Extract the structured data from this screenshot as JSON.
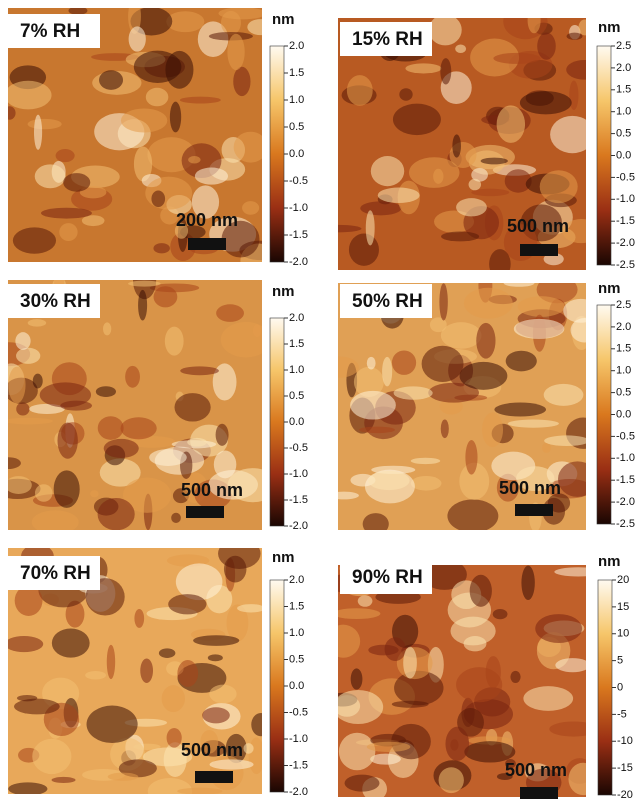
{
  "panels": [
    {
      "label": "7% RH",
      "unit": "nm",
      "scale_bar": "200 nm",
      "ticks": [
        {
          "value": 2,
          "label": "2.0"
        },
        {
          "value": 1.5,
          "label": "1.5"
        },
        {
          "value": 1,
          "label": "1.0"
        },
        {
          "value": 0.5,
          "label": "0.5"
        },
        {
          "value": 0,
          "label": "0.0"
        },
        {
          "value": -0.5,
          "label": "-0.5"
        },
        {
          "value": -1,
          "label": "-1.0"
        },
        {
          "value": -1.5,
          "label": "-1.5"
        },
        {
          "value": -2,
          "label": "-2.0"
        }
      ]
    },
    {
      "label": "15% RH",
      "unit": "nm",
      "scale_bar": "500 nm",
      "ticks": [
        2.5,
        {
          "value": 2,
          "label": "2.0"
        },
        1.5,
        {
          "value": 1,
          "label": "1.0"
        },
        0.5,
        {
          "value": 0,
          "label": "0.0"
        },
        -0.5,
        {
          "value": -1,
          "label": "-1.0"
        },
        -1.5,
        {
          "value": -2,
          "label": "-2.0"
        },
        -2.5
      ]
    },
    {
      "label": "30% RH",
      "unit": "nm",
      "scale_bar": "500 nm",
      "ticks": [
        {
          "value": 2,
          "label": "2.0"
        },
        1.5,
        {
          "value": 1,
          "label": "1.0"
        },
        0.5,
        {
          "value": 0,
          "label": "0.0"
        },
        -0.5,
        {
          "value": -1,
          "label": "-1.0"
        },
        -1.5,
        {
          "value": -2,
          "label": "-2.0"
        }
      ]
    },
    {
      "label": "50% RH",
      "unit": "nm",
      "scale_bar": "500 nm",
      "ticks": [
        2.5,
        {
          "value": 2,
          "label": "2.0"
        },
        1.5,
        {
          "value": 1,
          "label": "1.0"
        },
        0.5,
        {
          "value": 0,
          "label": "0.0"
        },
        -0.5,
        {
          "value": -1,
          "label": "-1.0"
        },
        -1.5,
        {
          "value": -2,
          "label": "-2.0"
        },
        -2.5
      ]
    },
    {
      "label": "70% RH",
      "unit": "nm",
      "scale_bar": "500 nm",
      "ticks": [
        {
          "value": 2,
          "label": "2.0"
        },
        1.5,
        {
          "value": 1,
          "label": "1.0"
        },
        0.5,
        {
          "value": 0,
          "label": "0.0"
        },
        -0.5,
        {
          "value": -1,
          "label": "-1.0"
        },
        -1.5,
        {
          "value": -2,
          "label": "-2.0"
        }
      ]
    },
    {
      "label": "90% RH",
      "unit": "nm",
      "scale_bar": "500 nm",
      "ticks": [
        20,
        15,
        10,
        5,
        0,
        -5,
        -10,
        -15,
        -20
      ]
    }
  ]
}
